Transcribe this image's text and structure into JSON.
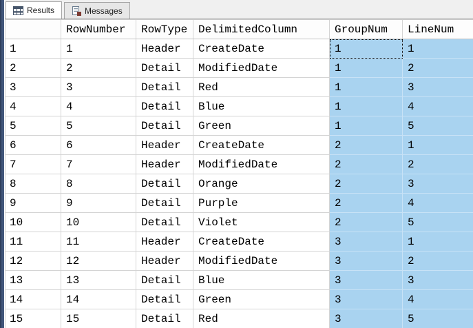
{
  "tabs": [
    {
      "label": "Results",
      "icon": "results-grid-icon",
      "active": true
    },
    {
      "label": "Messages",
      "icon": "messages-icon",
      "active": false
    }
  ],
  "grid": {
    "columns": [
      "RowNumber",
      "RowType",
      "DelimitedColumn",
      "GroupNum",
      "LineNum"
    ],
    "selected_column_indexes": [
      3,
      4
    ],
    "focused_cell": {
      "row": 0,
      "column": "GroupNum"
    },
    "rows": [
      {
        "n": "1",
        "cells": [
          "1",
          "Header",
          "CreateDate",
          "1",
          "1"
        ]
      },
      {
        "n": "2",
        "cells": [
          "2",
          "Detail",
          "ModifiedDate",
          "1",
          "2"
        ]
      },
      {
        "n": "3",
        "cells": [
          "3",
          "Detail",
          "Red",
          "1",
          "3"
        ]
      },
      {
        "n": "4",
        "cells": [
          "4",
          "Detail",
          "Blue",
          "1",
          "4"
        ]
      },
      {
        "n": "5",
        "cells": [
          "5",
          "Detail",
          "Green",
          "1",
          "5"
        ]
      },
      {
        "n": "6",
        "cells": [
          "6",
          "Header",
          "CreateDate",
          "2",
          "1"
        ]
      },
      {
        "n": "7",
        "cells": [
          "7",
          "Header",
          "ModifiedDate",
          "2",
          "2"
        ]
      },
      {
        "n": "8",
        "cells": [
          "8",
          "Detail",
          "Orange",
          "2",
          "3"
        ]
      },
      {
        "n": "9",
        "cells": [
          "9",
          "Detail",
          "Purple",
          "2",
          "4"
        ]
      },
      {
        "n": "10",
        "cells": [
          "10",
          "Detail",
          "Violet",
          "2",
          "5"
        ]
      },
      {
        "n": "11",
        "cells": [
          "11",
          "Header",
          "CreateDate",
          "3",
          "1"
        ]
      },
      {
        "n": "12",
        "cells": [
          "12",
          "Header",
          "ModifiedDate",
          "3",
          "2"
        ]
      },
      {
        "n": "13",
        "cells": [
          "13",
          "Detail",
          "Blue",
          "3",
          "3"
        ]
      },
      {
        "n": "14",
        "cells": [
          "14",
          "Detail",
          "Green",
          "3",
          "4"
        ]
      },
      {
        "n": "15",
        "cells": [
          "15",
          "Detail",
          "Red",
          "3",
          "5"
        ]
      }
    ]
  },
  "colors": {
    "selection_blue": "#A9D3F0",
    "accent_strip": "#41567A",
    "gridline": "#D4D4D4"
  }
}
